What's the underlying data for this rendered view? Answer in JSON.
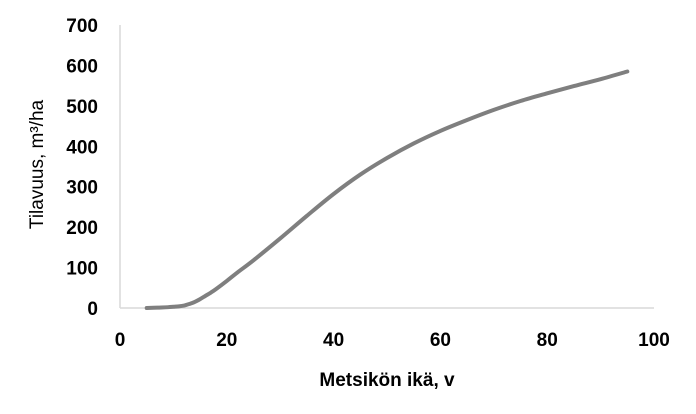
{
  "chart_data": {
    "type": "line",
    "title": "",
    "xlabel": "Metsikön ikä, v",
    "ylabel": "Tilavuus, m³/ha",
    "xlim": [
      0,
      100
    ],
    "ylim": [
      0,
      700
    ],
    "x_ticks": [
      0,
      20,
      40,
      60,
      80,
      100
    ],
    "y_ticks": [
      0,
      100,
      200,
      300,
      400,
      500,
      600,
      700
    ],
    "grid": false,
    "legend": "none",
    "line_color": "#7f7f7f",
    "series": [
      {
        "x": [
          5,
          7,
          9,
          10,
          11,
          12,
          13,
          14,
          15,
          16,
          17,
          18,
          20,
          22,
          25,
          30,
          35,
          40,
          45,
          50,
          55,
          60,
          65,
          70,
          75,
          80,
          85,
          90,
          95
        ],
        "y": [
          0,
          1,
          2,
          3,
          4,
          6,
          10,
          15,
          22,
          30,
          38,
          47,
          67,
          88,
          118,
          172,
          228,
          282,
          330,
          371,
          407,
          438,
          465,
          490,
          512,
          531,
          549,
          566,
          585
        ]
      }
    ]
  }
}
